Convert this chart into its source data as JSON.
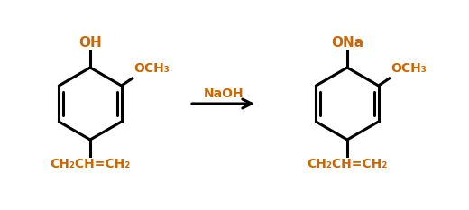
{
  "bg_color": "#ffffff",
  "line_color": "#000000",
  "text_color": "#cc6600",
  "arrow_label": "NaOH",
  "left_mol": {
    "oh_label": "OH",
    "och3_label": "OCH₃",
    "chain_label": "CH₂CH=CH₂"
  },
  "right_mol": {
    "ona_label": "ONa",
    "och3_label": "OCH₃",
    "chain_label": "CH₂CH=CH₂"
  },
  "figsize": [
    5.2,
    2.33
  ],
  "dpi": 100
}
